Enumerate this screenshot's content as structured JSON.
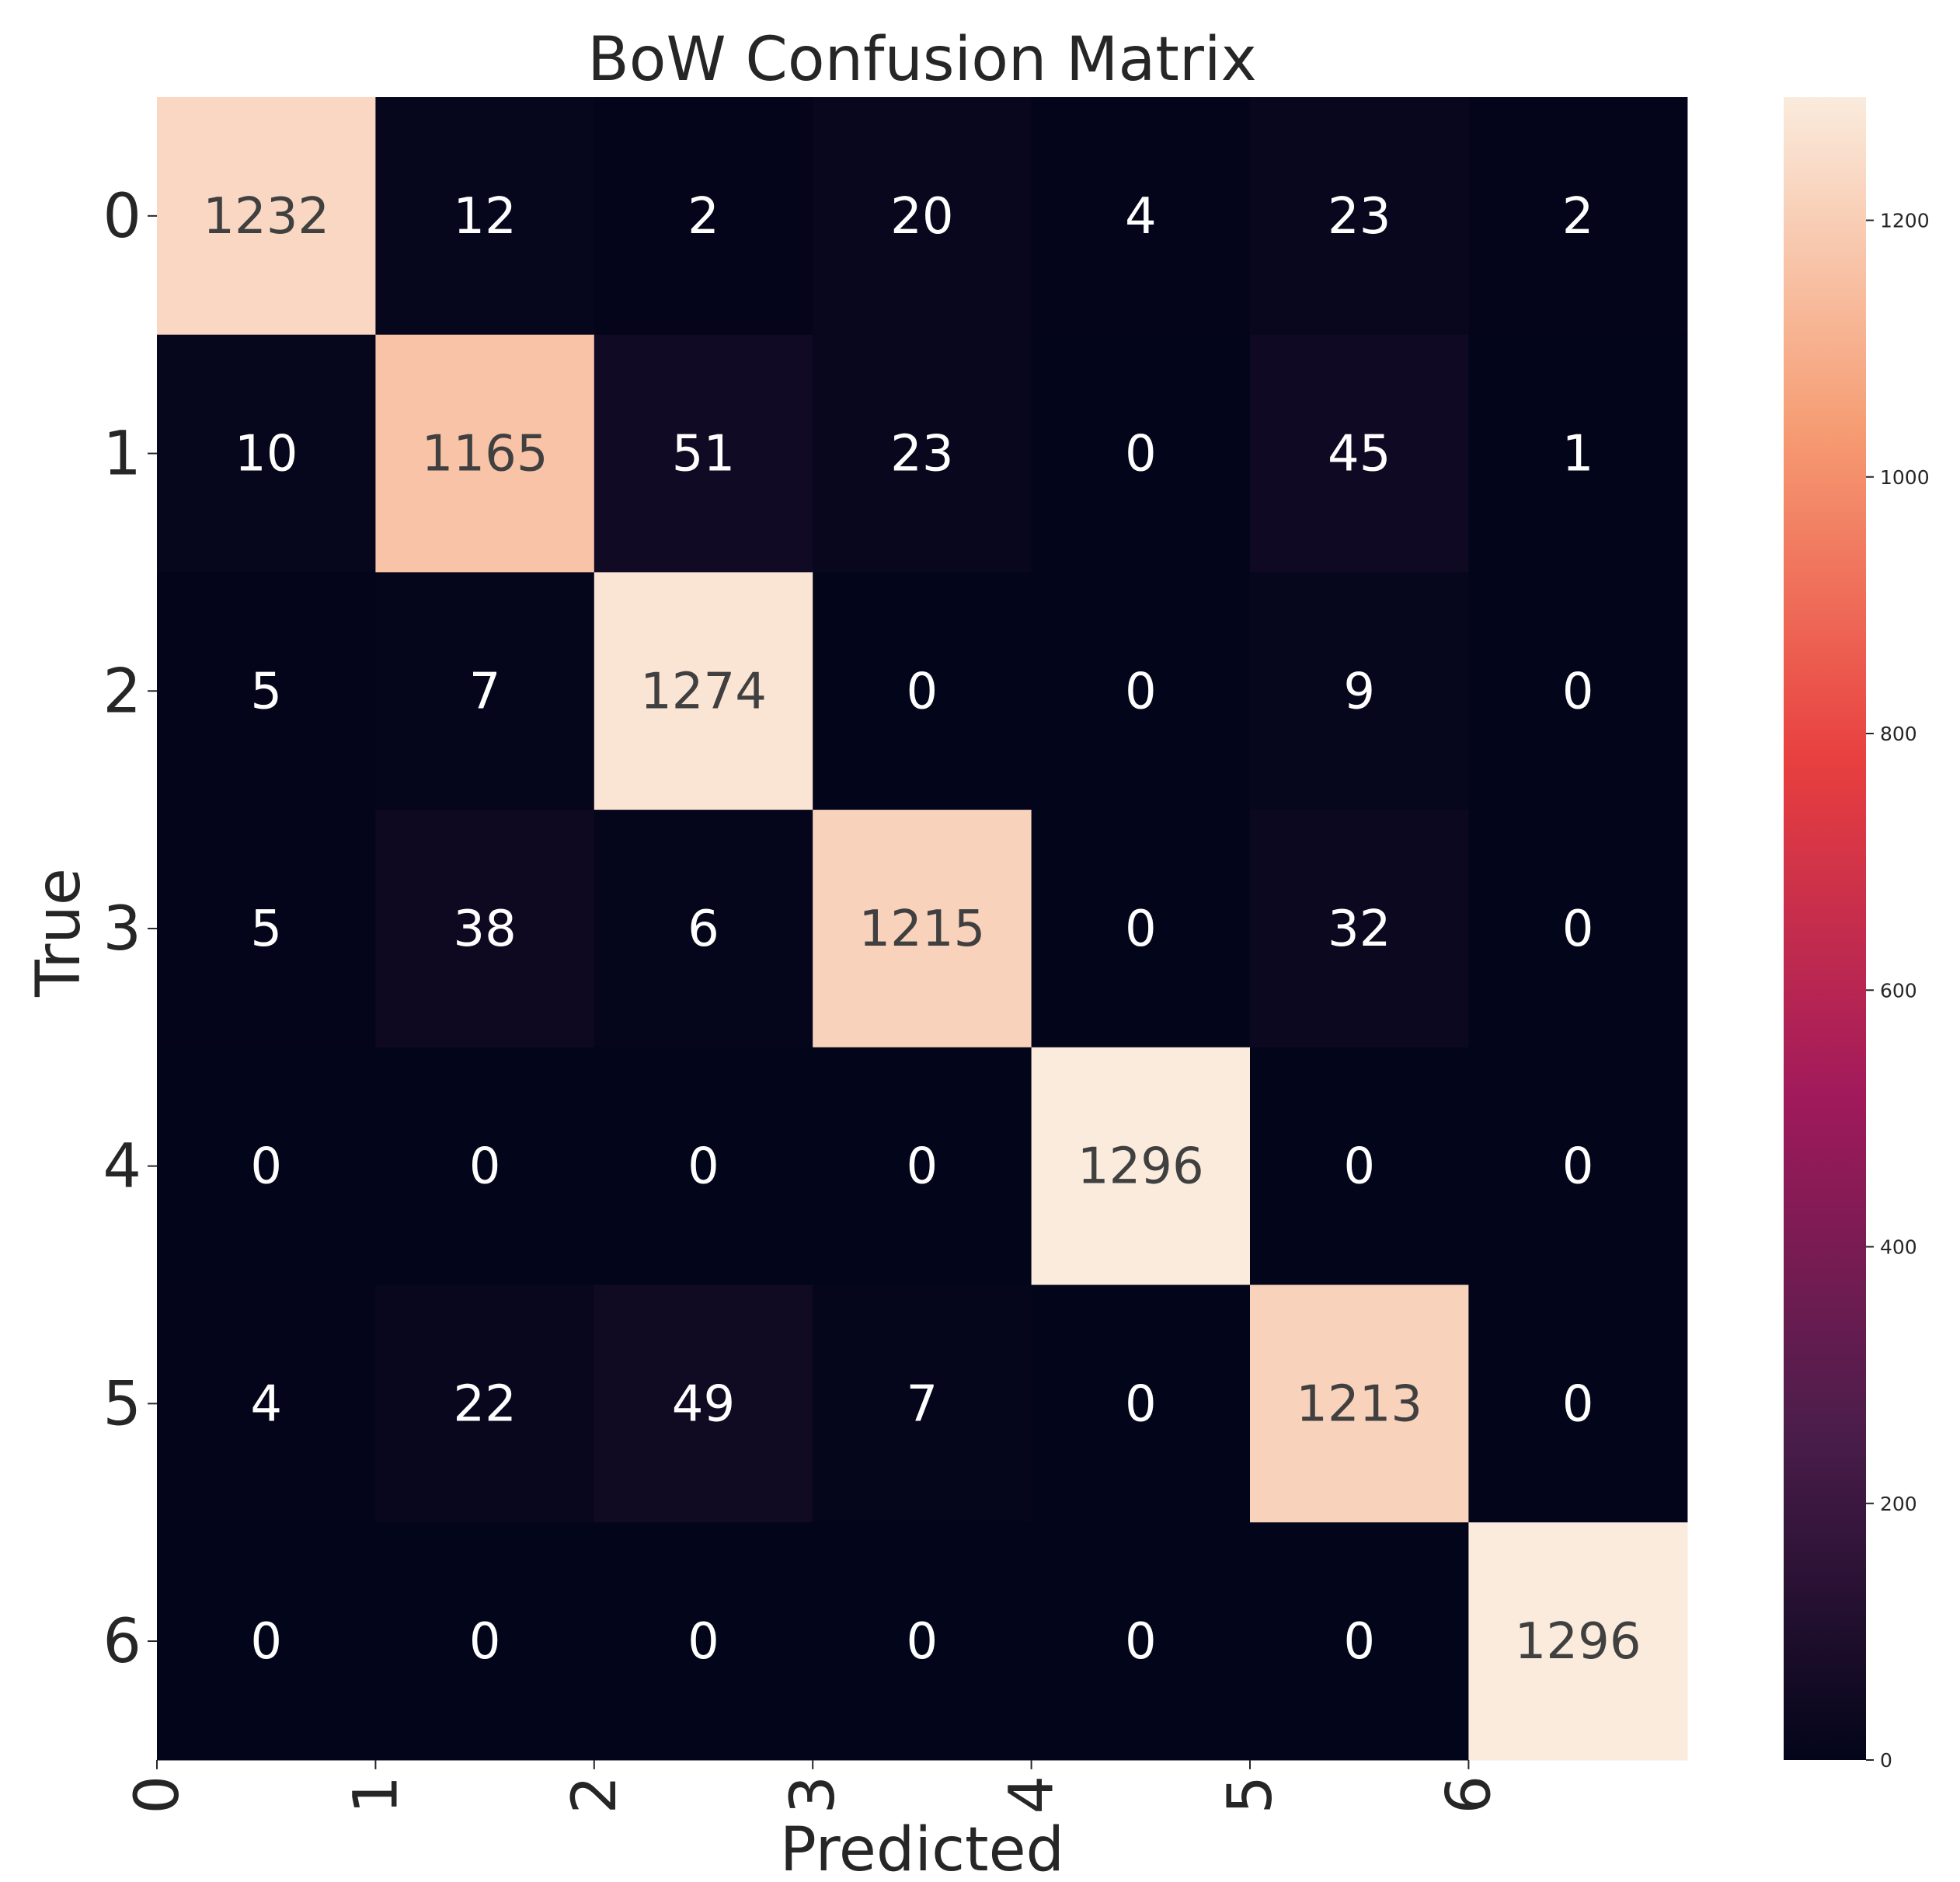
{
  "chart_data": {
    "type": "heatmap",
    "title": "BoW Confusion Matrix",
    "xlabel": "Predicted",
    "ylabel": "True",
    "x_tick_labels": [
      "0",
      "1",
      "2",
      "3",
      "4",
      "5",
      "6"
    ],
    "y_tick_labels": [
      "0",
      "1",
      "2",
      "3",
      "4",
      "5",
      "6"
    ],
    "matrix": [
      [
        1232,
        12,
        2,
        20,
        4,
        23,
        2
      ],
      [
        10,
        1165,
        51,
        23,
        0,
        45,
        1
      ],
      [
        5,
        7,
        1274,
        0,
        0,
        9,
        0
      ],
      [
        5,
        38,
        6,
        1215,
        0,
        32,
        0
      ],
      [
        0,
        0,
        0,
        0,
        1296,
        0,
        0
      ],
      [
        4,
        22,
        49,
        7,
        0,
        1213,
        0
      ],
      [
        0,
        0,
        0,
        0,
        0,
        0,
        1296
      ]
    ],
    "colorbar": {
      "min": 0,
      "max": 1296,
      "ticks": [
        0,
        200,
        400,
        600,
        800,
        1000,
        1200
      ],
      "colormap": "rocket",
      "colors": [
        "#03051a",
        "#4c1d4b",
        "#a11a5b",
        "#e83f3f",
        "#f69c73",
        "#faebdd"
      ]
    },
    "grid": false,
    "legend": "colorbar-right"
  }
}
